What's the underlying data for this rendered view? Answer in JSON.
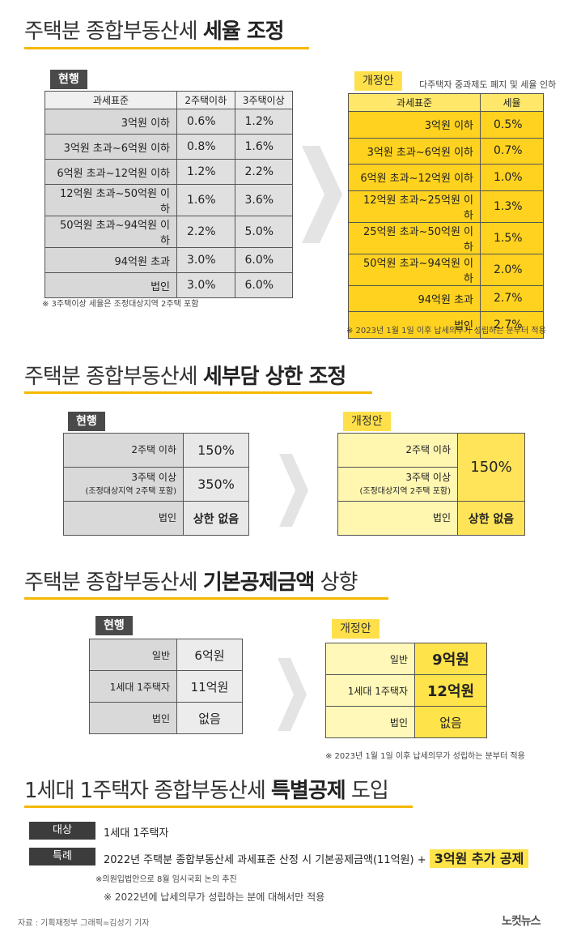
{
  "sec1": {
    "title_a": "주택분 종합부동산세",
    "title_b": "세율 조정",
    "current_tag": "현행",
    "new_tag": "개정안",
    "new_subtitle": "다주택자 중과제도 폐지 및 세율 인하",
    "current_headers": [
      "과세표준",
      "2주택이하",
      "3주택이상"
    ],
    "current_rows": [
      {
        "label": "3억원 이하",
        "a": "0.6%",
        "b": "1.2%"
      },
      {
        "label": "3억원 초과~6억원 이하",
        "a": "0.8%",
        "b": "1.6%"
      },
      {
        "label": "6억원 초과~12억원 이하",
        "a": "1.2%",
        "b": "2.2%"
      },
      {
        "label": "12억원 초과~50억원 이하",
        "a": "1.6%",
        "b": "3.6%"
      },
      {
        "label": "50억원 초과~94억원 이하",
        "a": "2.2%",
        "b": "5.0%"
      },
      {
        "label": "94억원 초과",
        "a": "3.0%",
        "b": "6.0%"
      },
      {
        "label": "법인",
        "a": "3.0%",
        "b": "6.0%"
      }
    ],
    "current_note": "※ 3주택이상 세율은 조정대상지역 2주택 포함",
    "new_headers": [
      "과세표준",
      "세율"
    ],
    "new_rows": [
      {
        "label": "3억원 이하",
        "v": "0.5%"
      },
      {
        "label": "3억원 초과~6억원 이하",
        "v": "0.7%"
      },
      {
        "label": "6억원 초과~12억원 이하",
        "v": "1.0%"
      },
      {
        "label": "12억원 초과~25억원 이하",
        "v": "1.3%"
      },
      {
        "label": "25억원 초과~50억원 이하",
        "v": "1.5%"
      },
      {
        "label": "50억원 초과~94억원 이하",
        "v": "2.0%"
      },
      {
        "label": "94억원 초과",
        "v": "2.7%"
      },
      {
        "label": "법인",
        "v": "2.7%"
      }
    ],
    "new_note": "※ 2023년 1월 1일 이후 납세의무가 성립하는 분부터 적용"
  },
  "sec2": {
    "title_a": "주택분 종합부동산세",
    "title_b": "세부담 상한 조정",
    "current_tag": "현행",
    "new_tag": "개정안",
    "row1_label": "2주택 이하",
    "row1_value": "150%",
    "row2_label": "3주택 이상",
    "row2_sub": "(조정대상지역 2주택 포함)",
    "row2_value": "350%",
    "row3_label": "법인",
    "row3_value": "상한 없음",
    "new_row1_label": "2주택 이하",
    "new_row2_label": "3주택 이상",
    "new_row2_sub": "(조정대상지역 2주택 포함)",
    "new_merged_value": "150%",
    "new_row3_label": "법인",
    "new_row3_value": "상한 없음"
  },
  "sec3": {
    "title_a": "주택분 종합부동산세",
    "title_b": "기본공제금액",
    "title_c": "상향",
    "current_tag": "현행",
    "new_tag": "개정안",
    "current_rows": [
      {
        "label": "일반",
        "v": "6억원"
      },
      {
        "label": "1세대 1주택자",
        "v": "11억원"
      },
      {
        "label": "법인",
        "v": "없음"
      }
    ],
    "new_rows": [
      {
        "label": "일반",
        "v": "9억원"
      },
      {
        "label": "1세대 1주택자",
        "v": "12억원"
      },
      {
        "label": "법인",
        "v": "없음"
      }
    ],
    "new_note": "※ 2023년 1월 1일 이후 납세의무가 성립하는 분부터 적용"
  },
  "sec4": {
    "title_a": "1세대 1주택자 종합부동산세",
    "title_b": "특별공제",
    "title_c": "도입",
    "target_label": "대상",
    "target_text": "1세대 1주택자",
    "special_label": "특례",
    "special_text": "2022년 주택분 종합부동산세 과세표준 산정 시 기본공제금액(11억원) +",
    "special_highlight": "3억원 추가 공제",
    "note1": "※의원입법안으로 8월 임시국회 논의 추진",
    "note2": "※ 2022년에 납세의무가 성립하는 분에 대해서만 적용"
  },
  "footer": {
    "source": "자료 : 기획재정부   그래픽=김성기 기자",
    "logo": "노컷뉴스"
  },
  "colors": {
    "accent": "#f5b800",
    "yellow": "#ffd21f",
    "gray": "#d8d8d8",
    "dark": "#4a4a4a"
  }
}
